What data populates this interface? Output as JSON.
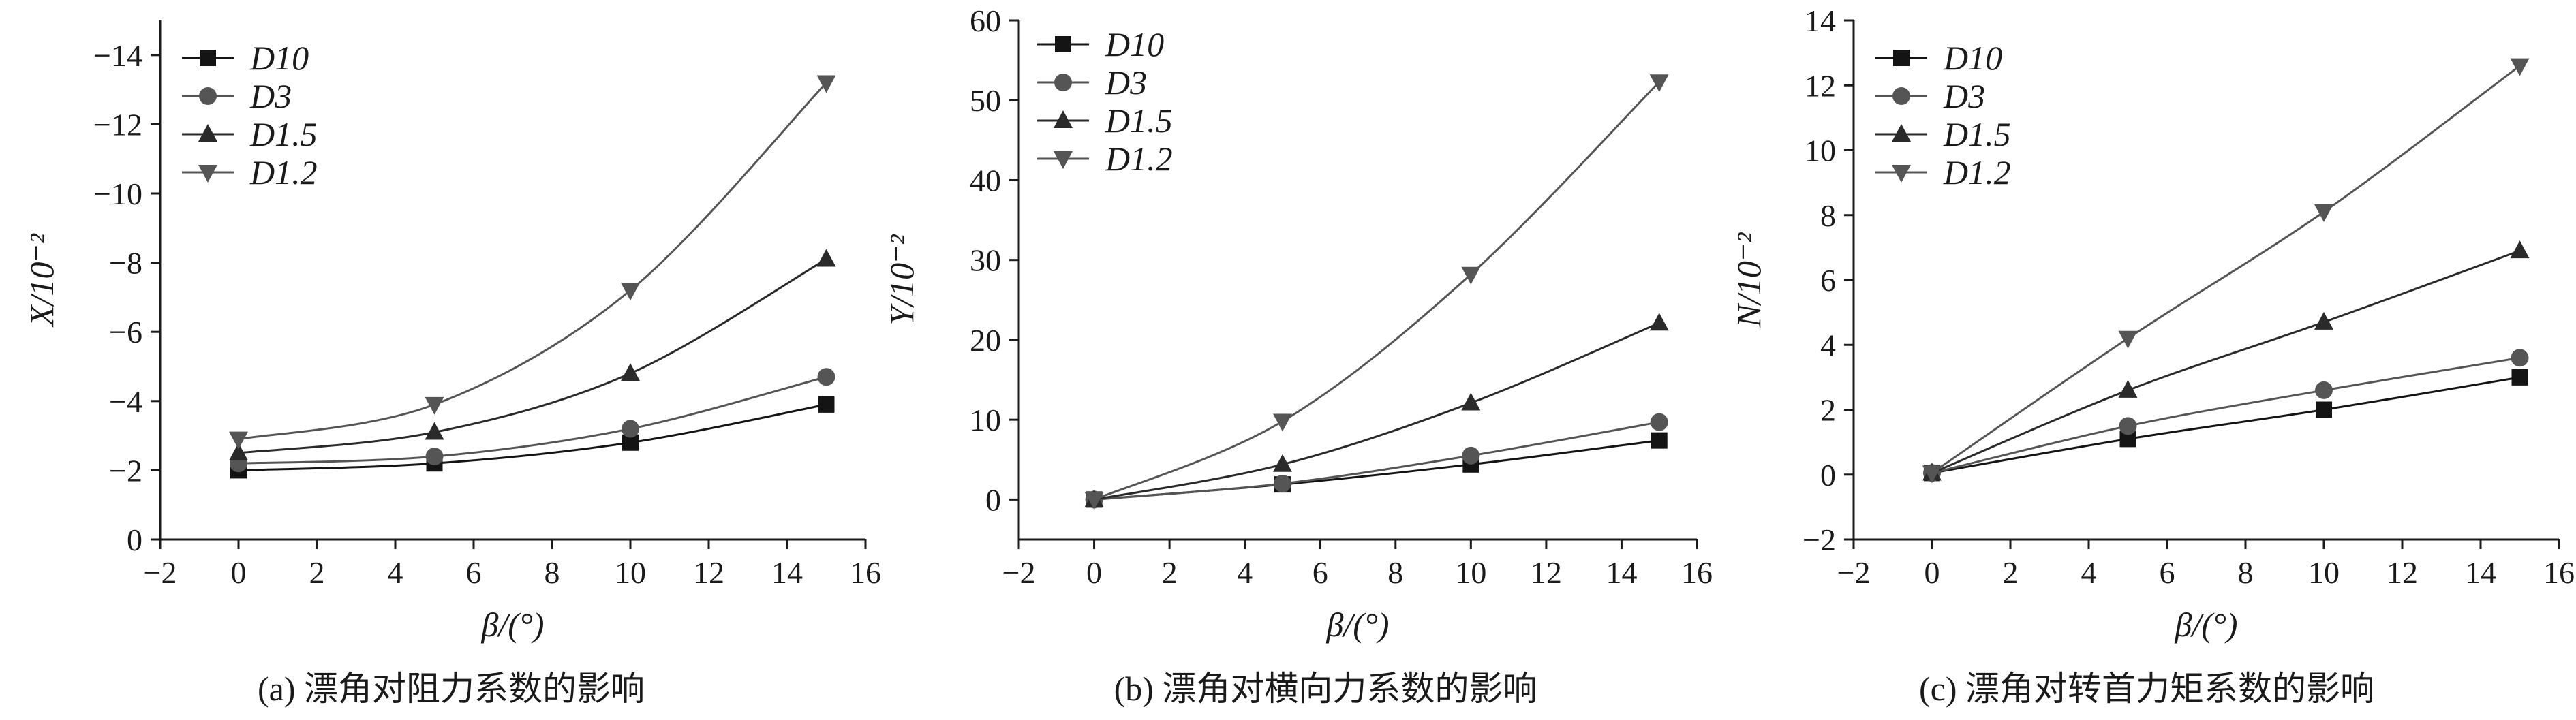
{
  "panels": [
    {
      "caption": "(a) 漂角对阻力系数的影响",
      "x_title": "β/(°)",
      "y_title": "X/10⁻²",
      "chart_data": {
        "type": "line",
        "xlabel": "β/(°)",
        "ylabel": "X/10⁻²",
        "xlim": [
          -2,
          16
        ],
        "ylim": [
          0,
          -15
        ],
        "y_axis_inverted": true,
        "x_ticks": [
          "−2",
          "0",
          "2",
          "4",
          "6",
          "8",
          "10",
          "12",
          "14",
          "16"
        ],
        "y_ticks": [
          "0",
          "−2",
          "−4",
          "−6",
          "−8",
          "−10",
          "−12",
          "−14"
        ],
        "x": [
          0,
          5,
          10,
          15
        ],
        "series": [
          {
            "name": "D10",
            "marker": "square",
            "values": [
              -2.0,
              -2.2,
              -2.8,
              -3.9
            ]
          },
          {
            "name": "D3",
            "marker": "circle",
            "values": [
              -2.2,
              -2.4,
              -3.2,
              -4.7
            ]
          },
          {
            "name": "D1.5",
            "marker": "triangle-up",
            "values": [
              -2.5,
              -3.1,
              -4.8,
              -8.1
            ]
          },
          {
            "name": "D1.2",
            "marker": "triangle-down",
            "values": [
              -2.9,
              -3.9,
              -7.2,
              -13.2
            ]
          }
        ],
        "legend_position": "top-left",
        "grid": false
      }
    },
    {
      "caption": "(b) 漂角对横向力系数的影响",
      "x_title": "β/(°)",
      "y_title": "Y/10⁻²",
      "chart_data": {
        "type": "line",
        "xlabel": "β/(°)",
        "ylabel": "Y/10⁻²",
        "xlim": [
          -2,
          16
        ],
        "ylim": [
          -5,
          60
        ],
        "x_ticks": [
          "−2",
          "0",
          "2",
          "4",
          "6",
          "8",
          "10",
          "12",
          "14",
          "16"
        ],
        "y_ticks": [
          "0",
          "10",
          "20",
          "30",
          "40",
          "50",
          "60"
        ],
        "x": [
          0,
          5,
          10,
          15
        ],
        "series": [
          {
            "name": "D10",
            "marker": "square",
            "values": [
              0,
              1.9,
              4.4,
              7.4
            ]
          },
          {
            "name": "D3",
            "marker": "circle",
            "values": [
              0,
              2.0,
              5.5,
              9.7
            ]
          },
          {
            "name": "D1.5",
            "marker": "triangle-up",
            "values": [
              0,
              4.4,
              12.1,
              22.1
            ]
          },
          {
            "name": "D1.2",
            "marker": "triangle-down",
            "values": [
              0,
              9.8,
              28.2,
              52.3
            ]
          }
        ],
        "legend_position": "top-left",
        "grid": false
      }
    },
    {
      "caption": "(c) 漂角对转首力矩系数的影响",
      "x_title": "β/(°)",
      "y_title": "N/10⁻²",
      "chart_data": {
        "type": "line",
        "xlabel": "β/(°)",
        "ylabel": "N/10⁻²",
        "xlim": [
          -2,
          16
        ],
        "ylim": [
          -2,
          14
        ],
        "x_ticks": [
          "−2",
          "0",
          "2",
          "4",
          "6",
          "8",
          "10",
          "12",
          "14",
          "16"
        ],
        "y_ticks": [
          "−2",
          "0",
          "2",
          "4",
          "6",
          "8",
          "10",
          "12",
          "14"
        ],
        "x": [
          0,
          5,
          10,
          15
        ],
        "series": [
          {
            "name": "D10",
            "marker": "square",
            "values": [
              0.05,
              1.1,
              2.0,
              3.0
            ]
          },
          {
            "name": "D3",
            "marker": "circle",
            "values": [
              0.05,
              1.5,
              2.6,
              3.6
            ]
          },
          {
            "name": "D1.5",
            "marker": "triangle-up",
            "values": [
              0.05,
              2.6,
              4.7,
              6.9
            ]
          },
          {
            "name": "D1.2",
            "marker": "triangle-down",
            "values": [
              0.05,
              4.2,
              8.1,
              12.6
            ]
          }
        ],
        "legend_position": "top-left",
        "grid": false
      }
    }
  ],
  "colors": {
    "D10": "#141414",
    "D3": "#555555",
    "D1.5": "#2a2a2a",
    "D1.2": "#555555",
    "axis": "#1a1a1a"
  }
}
